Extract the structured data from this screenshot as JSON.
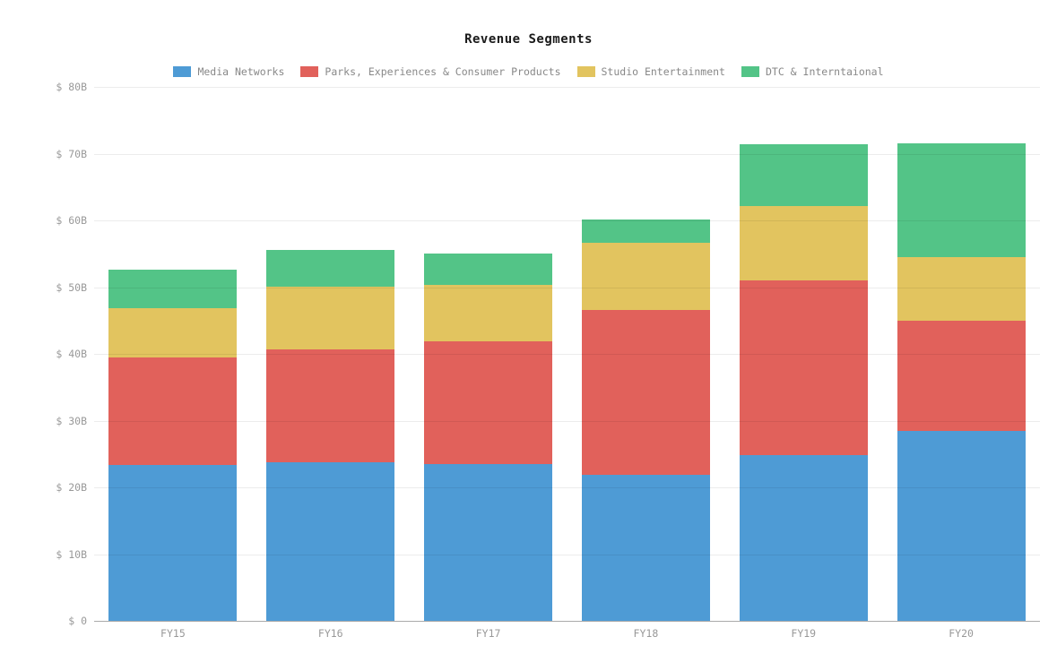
{
  "chart": {
    "title": "Revenue Segments"
  },
  "chart_data": {
    "type": "bar",
    "stacked": true,
    "title": "Revenue Segments",
    "categories": [
      "FY15",
      "FY16",
      "FY17",
      "FY18",
      "FY19",
      "FY20"
    ],
    "series": [
      {
        "name": "Media Networks",
        "color": "#4E9BD5",
        "values": [
          23.3,
          23.7,
          23.5,
          21.9,
          24.8,
          28.4
        ]
      },
      {
        "name": "Parks, Experiences & Consumer Products",
        "color": "#E1615B",
        "values": [
          16.2,
          17.0,
          18.4,
          24.7,
          26.2,
          16.5
        ]
      },
      {
        "name": "Studio Entertainment",
        "color": "#E2C45F",
        "values": [
          7.4,
          9.4,
          8.4,
          10.1,
          11.1,
          9.6
        ]
      },
      {
        "name": "DTC & Interntaional",
        "color": "#53C487",
        "values": [
          5.7,
          5.5,
          4.8,
          3.4,
          9.3,
          17.0
        ]
      }
    ],
    "unit": "USD billions",
    "ylim": [
      0,
      80
    ],
    "yticks": [
      {
        "value": 0,
        "label": "$ 0"
      },
      {
        "value": 10,
        "label": "$ 10B"
      },
      {
        "value": 20,
        "label": "$ 20B"
      },
      {
        "value": 30,
        "label": "$ 30B"
      },
      {
        "value": 40,
        "label": "$ 40B"
      },
      {
        "value": 50,
        "label": "$ 50B"
      },
      {
        "value": 60,
        "label": "$ 60B"
      },
      {
        "value": 70,
        "label": "$ 70B"
      },
      {
        "value": 80,
        "label": "$ 80B"
      }
    ],
    "grid": "horizontal",
    "legend_position": "top"
  },
  "colors": {
    "grid": "rgba(0,0,0,0.075)",
    "axis_line": "#aaaaaa",
    "tick_label": "#999999",
    "legend_label": "#888888",
    "title": "#1a1a1a",
    "background": "#ffffff"
  }
}
